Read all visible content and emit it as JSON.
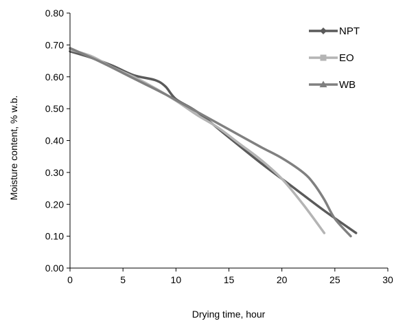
{
  "chart_data": {
    "type": "line",
    "xlabel": "Drying time, hour",
    "ylabel": "Moisture content, % w.b.",
    "xlim": [
      0,
      30
    ],
    "ylim": [
      0,
      0.8
    ],
    "x_ticks": [
      0,
      5,
      10,
      15,
      20,
      25,
      30
    ],
    "x_tick_labels": [
      "0",
      "5",
      "10",
      "15",
      "20",
      "25",
      "30"
    ],
    "y_ticks": [
      0,
      0.1,
      0.2,
      0.3,
      0.4,
      0.5,
      0.6,
      0.7,
      0.8
    ],
    "y_tick_labels": [
      "0.00",
      "0.10",
      "0.20",
      "0.30",
      "0.40",
      "0.50",
      "0.60",
      "0.70",
      "0.80"
    ],
    "grid": false,
    "legend_position": "top-right",
    "series": [
      {
        "name": "NPT",
        "color": "#5a5a5a",
        "marker": "diamond",
        "x": [
          0,
          2,
          4,
          6,
          8,
          9,
          10,
          12,
          15,
          18,
          21,
          24,
          27
        ],
        "y": [
          0.68,
          0.66,
          0.635,
          0.605,
          0.59,
          0.57,
          0.53,
          0.49,
          0.41,
          0.33,
          0.255,
          0.18,
          0.11
        ]
      },
      {
        "name": "EO",
        "color": "#b4b4b4",
        "marker": "square",
        "x": [
          0,
          2,
          4,
          6,
          8,
          10,
          12,
          14,
          16,
          18,
          20,
          22,
          24
        ],
        "y": [
          0.685,
          0.665,
          0.63,
          0.6,
          0.565,
          0.525,
          0.48,
          0.44,
          0.39,
          0.34,
          0.28,
          0.2,
          0.11
        ]
      },
      {
        "name": "WB",
        "color": "#808080",
        "marker": "triangle",
        "x": [
          0,
          3,
          6,
          9,
          12,
          15,
          18,
          20,
          22,
          23,
          24,
          25,
          26.5
        ],
        "y": [
          0.69,
          0.645,
          0.595,
          0.545,
          0.49,
          0.435,
          0.38,
          0.345,
          0.3,
          0.265,
          0.215,
          0.155,
          0.1
        ]
      }
    ]
  }
}
